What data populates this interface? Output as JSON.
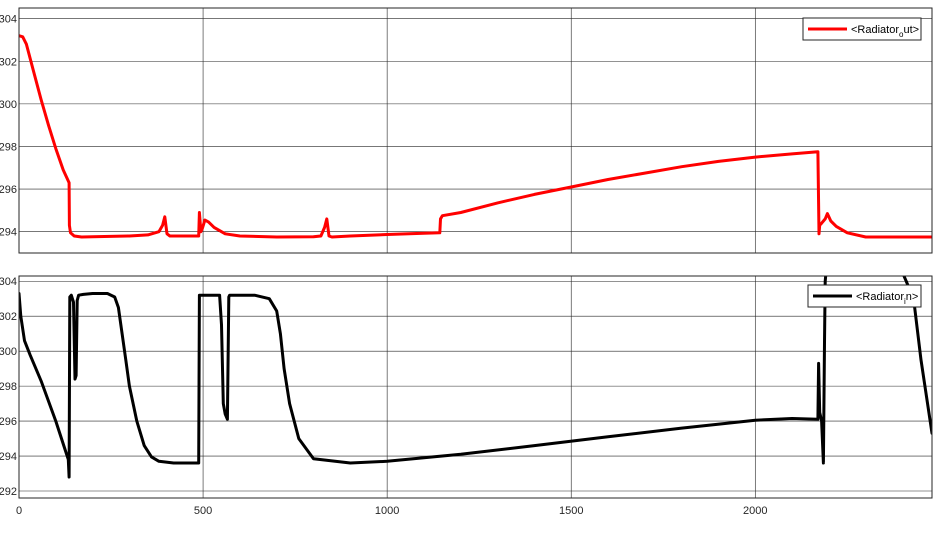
{
  "chart_data": [
    {
      "type": "line",
      "title": "",
      "xlabel": "",
      "ylabel": "",
      "xlim": [
        0,
        2480
      ],
      "ylim": [
        293,
        304.5
      ],
      "xticks": [
        500,
        1000,
        1500,
        2000
      ],
      "yticks": [
        294,
        296,
        298,
        300,
        302,
        304
      ],
      "ytick_labels": [
        "294",
        "296",
        "298",
        "300",
        "302",
        "304"
      ],
      "grid": true,
      "legend": "top-right",
      "series": [
        {
          "name": "<Radiator_out>",
          "legend_main": "<Radiator",
          "legend_sub": "o",
          "legend_tail": "ut>",
          "color": "#ff0000",
          "x": [
            0,
            10,
            20,
            40,
            60,
            80,
            100,
            120,
            136,
            137,
            140,
            150,
            170,
            200,
            300,
            350,
            380,
            390,
            396,
            402,
            410,
            450,
            480,
            488,
            490,
            494,
            498,
            505,
            515,
            530,
            560,
            600,
            700,
            800,
            820,
            830,
            836,
            842,
            850,
            900,
            1000,
            1100,
            1143,
            1145,
            1150,
            1200,
            1300,
            1400,
            1500,
            1600,
            1700,
            1800,
            1900,
            2000,
            2100,
            2170,
            2173,
            2175,
            2180,
            2190,
            2196,
            2205,
            2220,
            2250,
            2300,
            2400,
            2480
          ],
          "y": [
            303.2,
            303.15,
            302.8,
            301.5,
            300.2,
            299.0,
            297.9,
            296.9,
            296.3,
            294.3,
            293.95,
            293.8,
            293.75,
            293.76,
            293.8,
            293.85,
            294.0,
            294.3,
            294.7,
            293.9,
            293.8,
            293.8,
            293.8,
            293.8,
            294.9,
            294.0,
            294.15,
            294.55,
            294.45,
            294.2,
            293.9,
            293.8,
            293.75,
            293.76,
            293.8,
            294.2,
            294.6,
            293.8,
            293.75,
            293.8,
            293.87,
            293.93,
            293.95,
            294.6,
            294.75,
            294.9,
            295.35,
            295.75,
            296.1,
            296.45,
            296.75,
            297.05,
            297.3,
            297.5,
            297.65,
            297.75,
            293.9,
            294.3,
            294.4,
            294.6,
            294.85,
            294.5,
            294.25,
            293.95,
            293.75,
            293.75,
            293.75
          ]
        }
      ]
    },
    {
      "type": "line",
      "title": "",
      "xlabel": "",
      "ylabel": "",
      "xlim": [
        0,
        2480
      ],
      "ylim": [
        291.6,
        304.3
      ],
      "xticks": [
        0,
        500,
        1000,
        1500,
        2000
      ],
      "xtick_labels": [
        "0",
        "500",
        "1000",
        "1500",
        "2000"
      ],
      "yticks": [
        292,
        294,
        296,
        298,
        300,
        302,
        304
      ],
      "ytick_labels": [
        "292",
        "294",
        "296",
        "298",
        "300",
        "302",
        "304"
      ],
      "grid": true,
      "legend": "top-right",
      "series": [
        {
          "name": "<Radiator_in>",
          "legend_main": "<Radiator",
          "legend_sub": "i",
          "legend_tail": "n>",
          "color": "#000000",
          "x": [
            0,
            5,
            15,
            30,
            60,
            100,
            134,
            136,
            138,
            142,
            148,
            152,
            155,
            158,
            162,
            175,
            200,
            240,
            260,
            270,
            280,
            290,
            300,
            320,
            340,
            360,
            380,
            420,
            486,
            488,
            490,
            545,
            550,
            555,
            560,
            566,
            570,
            572,
            580,
            640,
            680,
            700,
            710,
            720,
            735,
            760,
            800,
            900,
            1000,
            1200,
            1400,
            1600,
            1800,
            2000,
            2100,
            2170,
            2172,
            2175,
            2180,
            2185,
            2188,
            2190,
            2192,
            2300,
            2400,
            2430,
            2450,
            2480
          ],
          "y": [
            303.3,
            302.0,
            300.6,
            299.8,
            298.3,
            296.0,
            293.8,
            292.8,
            303.1,
            303.2,
            302.8,
            298.4,
            298.6,
            302.9,
            303.2,
            303.25,
            303.3,
            303.3,
            303.1,
            302.5,
            301.0,
            299.5,
            298.0,
            296.0,
            294.6,
            293.95,
            293.7,
            293.6,
            293.6,
            293.6,
            303.2,
            303.2,
            301.5,
            297.0,
            296.4,
            296.1,
            303.1,
            303.2,
            303.2,
            303.2,
            303.0,
            302.3,
            301.0,
            299.0,
            297.0,
            295.0,
            293.85,
            293.6,
            293.7,
            294.1,
            294.6,
            295.1,
            295.6,
            296.05,
            296.15,
            296.1,
            299.3,
            296.5,
            296.0,
            293.6,
            300.5,
            304.0,
            304.5,
            304.5,
            304.5,
            303.0,
            299.5,
            295.3
          ]
        }
      ]
    }
  ]
}
